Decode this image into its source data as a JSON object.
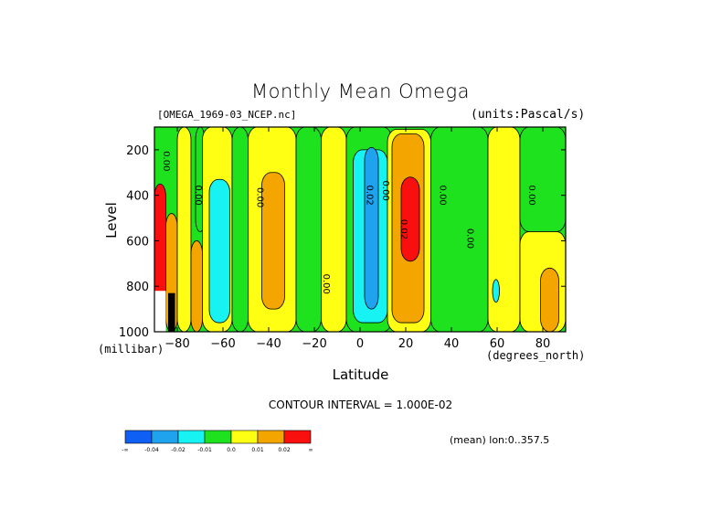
{
  "chart_data": {
    "type": "heatmap",
    "title": "Monthly Mean Omega",
    "file_label": "[OMEGA_1969-03_NCEP.nc]",
    "units_label": "(units:Pascal/s)",
    "ylabel": "Level",
    "yunit": "(millibar)",
    "xlabel": "Latitude",
    "xunit": "(degrees_north)",
    "contour_interval": "CONTOUR INTERVAL = 1.000E-02",
    "mean_note": "(mean) lon:0..357.5",
    "xlim": [
      -90,
      90
    ],
    "ylim": [
      1000,
      100
    ],
    "xticks": [
      -80,
      -60,
      -40,
      -20,
      0,
      20,
      40,
      60,
      80
    ],
    "xtick_labels": [
      "−80",
      "−60",
      "−40",
      "−20",
      "0",
      "20",
      "40",
      "60",
      "80"
    ],
    "yticks": [
      200,
      400,
      600,
      800,
      1000
    ],
    "ytick_labels": [
      "200",
      "400",
      "600",
      "800",
      "1000"
    ],
    "colorbar": {
      "colors": [
        "#0f5ff5",
        "#1fa3ef",
        "#17f2f2",
        "#1ee21e",
        "#ffff14",
        "#f5a500",
        "#fa0f0f"
      ],
      "labels": [
        "-∞",
        "-0.04",
        "-0.02",
        "-0.01",
        "0.0",
        "0.01",
        "0.02",
        "∞"
      ]
    },
    "contour_labels": [
      {
        "text": "0.00",
        "lat": -86,
        "lev": 250
      },
      {
        "text": "0.00",
        "lat": -72,
        "lev": 400
      },
      {
        "text": "0.00",
        "lat": -45,
        "lev": 410
      },
      {
        "text": "0.00",
        "lat": -16,
        "lev": 790
      },
      {
        "text": "0.02",
        "lat": 3,
        "lev": 400
      },
      {
        "text": "0.00",
        "lat": 10,
        "lev": 380
      },
      {
        "text": "0.02",
        "lat": 18,
        "lev": 550
      },
      {
        "text": "0.00",
        "lat": 35,
        "lev": 400
      },
      {
        "text": "0.00",
        "lat": 47,
        "lev": 590
      },
      {
        "text": "0.00",
        "lat": 74,
        "lev": 400
      }
    ],
    "bands": [
      {
        "lat0": -90,
        "lat1": -85,
        "color": "#fa0f0f",
        "lev0": 350,
        "lev1": 1000
      },
      {
        "lat0": -85,
        "lat1": -80,
        "color": "#f5a500",
        "lev0": 480,
        "lev1": 1000
      },
      {
        "lat0": -80,
        "lat1": -74,
        "color": "#ffff14",
        "lev0": 100,
        "lev1": 1000
      },
      {
        "lat0": -74,
        "lat1": -69,
        "color": "#f5a500",
        "lev0": 600,
        "lev1": 1000
      },
      {
        "lat0": -72,
        "lat1": -68,
        "color": "#1ee21e",
        "lev0": 100,
        "lev1": 560
      },
      {
        "lat0": -69,
        "lat1": -56,
        "color": "#ffff14",
        "lev0": 100,
        "lev1": 1000
      },
      {
        "lat0": -66,
        "lat1": -57,
        "color": "#17f2f2",
        "lev0": 330,
        "lev1": 960
      },
      {
        "lat0": -56,
        "lat1": -49,
        "color": "#1ee21e",
        "lev0": 100,
        "lev1": 1000
      },
      {
        "lat0": -49,
        "lat1": -28,
        "color": "#ffff14",
        "lev0": 100,
        "lev1": 1000
      },
      {
        "lat0": -43,
        "lat1": -33,
        "color": "#f5a500",
        "lev0": 300,
        "lev1": 900
      },
      {
        "lat0": -28,
        "lat1": -17,
        "color": "#1ee21e",
        "lev0": 100,
        "lev1": 1000
      },
      {
        "lat0": -17,
        "lat1": -6,
        "color": "#ffff14",
        "lev0": 100,
        "lev1": 1000
      },
      {
        "lat0": -6,
        "lat1": 14,
        "color": "#1ee21e",
        "lev0": 100,
        "lev1": 1000
      },
      {
        "lat0": -3,
        "lat1": 12,
        "color": "#17f2f2",
        "lev0": 200,
        "lev1": 960
      },
      {
        "lat0": 2,
        "lat1": 8,
        "color": "#1fa3ef",
        "lev0": 190,
        "lev1": 900
      },
      {
        "lat0": 12,
        "lat1": 31,
        "color": "#ffff14",
        "lev0": 110,
        "lev1": 1000
      },
      {
        "lat0": 14,
        "lat1": 28,
        "color": "#f5a500",
        "lev0": 130,
        "lev1": 960
      },
      {
        "lat0": 18,
        "lat1": 26,
        "color": "#fa0f0f",
        "lev0": 320,
        "lev1": 690
      },
      {
        "lat0": 31,
        "lat1": 56,
        "color": "#1ee21e",
        "lev0": 100,
        "lev1": 1000
      },
      {
        "lat0": 56,
        "lat1": 70,
        "color": "#ffff14",
        "lev0": 100,
        "lev1": 1000
      },
      {
        "lat0": 58,
        "lat1": 61,
        "color": "#17f2f2",
        "lev0": 770,
        "lev1": 870
      },
      {
        "lat0": 70,
        "lat1": 90,
        "color": "#1ee21e",
        "lev0": 100,
        "lev1": 560
      },
      {
        "lat0": 70,
        "lat1": 90,
        "color": "#ffff14",
        "lev0": 560,
        "lev1": 1000
      },
      {
        "lat0": 79,
        "lat1": 87,
        "color": "#f5a500",
        "lev0": 720,
        "lev1": 1000
      }
    ]
  }
}
